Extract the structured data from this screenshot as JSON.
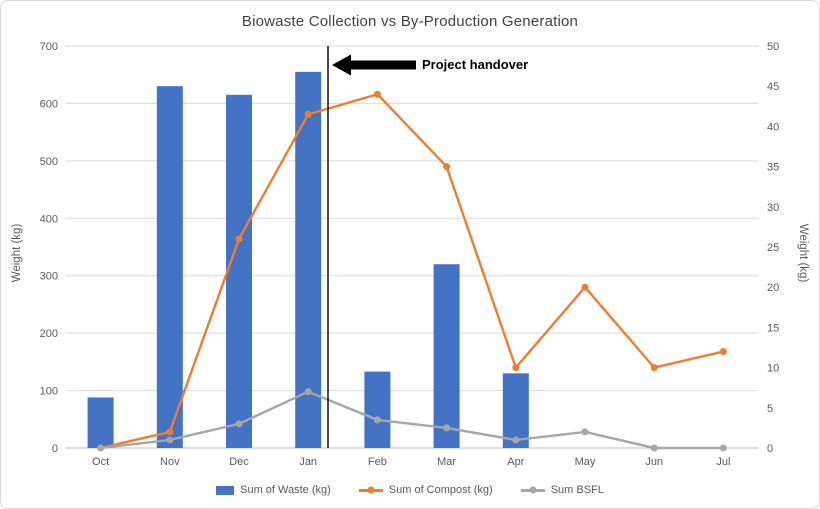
{
  "chart_data": {
    "type": "combo",
    "title": "Biowaste Collection vs By-Production Generation",
    "categories": [
      "Oct",
      "Nov",
      "Dec",
      "Jan",
      "Feb",
      "Mar",
      "Apr",
      "May",
      "Jun",
      "Jul"
    ],
    "series": [
      {
        "name": "Sum of Waste (kg)",
        "type": "bar",
        "axis": "left",
        "color": "#4472C4",
        "values": [
          88,
          630,
          615,
          655,
          133,
          320,
          130,
          0,
          0,
          0
        ]
      },
      {
        "name": "Sum of Compost (kg)",
        "type": "line",
        "axis": "right",
        "color": "#ED7D31",
        "values": [
          0,
          2,
          26,
          41.5,
          44,
          35,
          10,
          20,
          10,
          12
        ]
      },
      {
        "name": "Sum BSFL",
        "type": "line",
        "axis": "right",
        "color": "#A6A6A6",
        "values": [
          0,
          1,
          3,
          7,
          3.5,
          2.5,
          1,
          2,
          0,
          0
        ]
      }
    ],
    "axes": {
      "left": {
        "title": "Weight (kg)",
        "min": 0,
        "max": 700,
        "step": 100
      },
      "right": {
        "title": "Weight (kg)",
        "min": 0,
        "max": 50,
        "step": 5
      }
    },
    "annotation": {
      "label": "Project handover"
    },
    "legend_position": "bottom",
    "grid": true
  }
}
